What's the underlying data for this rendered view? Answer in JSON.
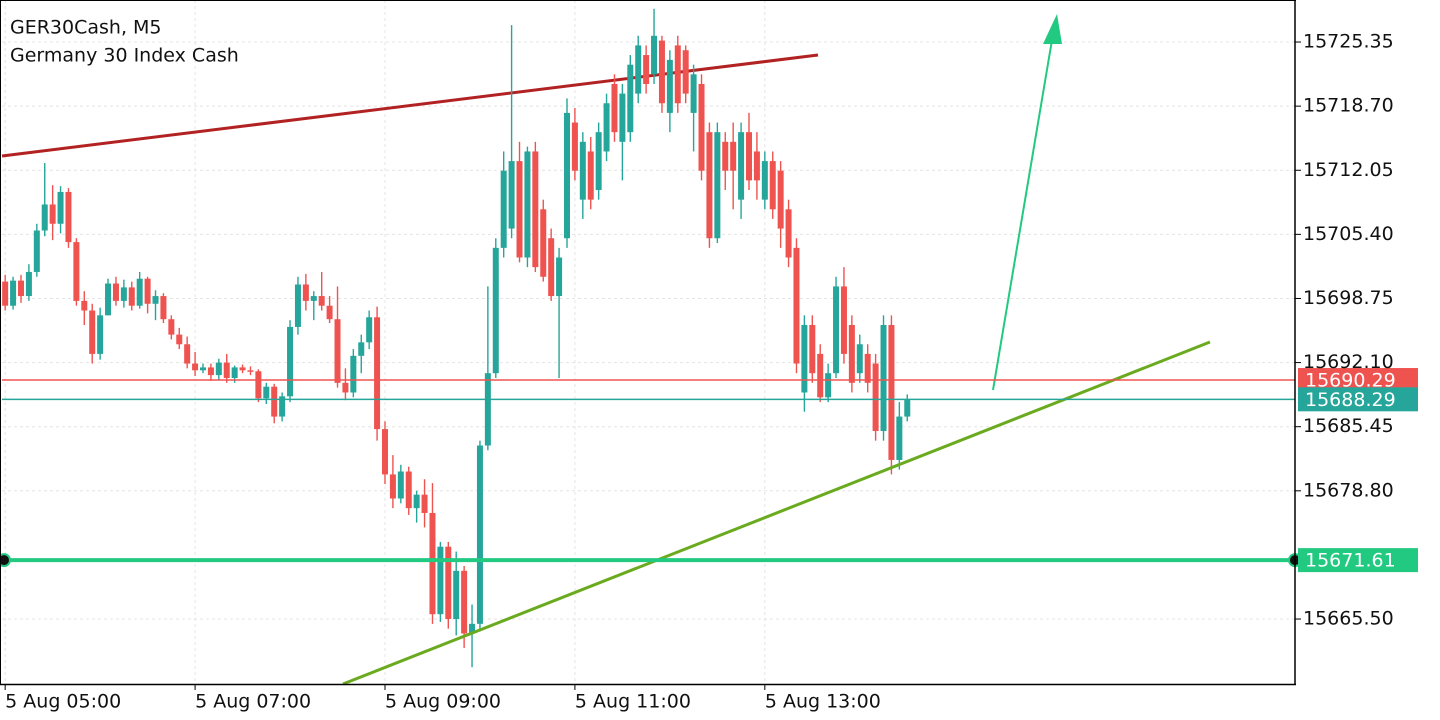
{
  "chart_data": {
    "type": "candlestick",
    "title": "GER30Cash, M5",
    "subtitle": "Germany 30 Index Cash",
    "up_color": "#26a69a",
    "down_color": "#ef5350",
    "grid": true,
    "ylim": [
      15658.76,
      15729.71
    ],
    "yticks": [
      15725.35,
      {
        "value": 15718.7,
        "label": "15718.70"
      },
      15712.05,
      {
        "value": 15705.4,
        "label": "15705.40"
      },
      15698.75,
      {
        "value": 15692.1,
        "label": "15692.10"
      },
      15685.45,
      {
        "value": 15678.8,
        "label": "15678.80"
      },
      {
        "value": 15665.5,
        "label": "15665.50"
      }
    ],
    "xlim": [
      -0.4,
      163
    ],
    "xticks": [
      {
        "value": 0,
        "label": "5 Aug 05:00"
      },
      {
        "value": 24,
        "label": "5 Aug 07:00"
      },
      {
        "value": 48,
        "label": "5 Aug 09:00"
      },
      {
        "value": 72,
        "label": "5 Aug 11:00"
      },
      {
        "value": 96,
        "label": "5 Aug 13:00"
      }
    ],
    "levels": [
      {
        "value": 15690.29,
        "color": "#ef5350"
      },
      {
        "value": 15688.29,
        "color": "#26a69a"
      },
      {
        "value": 15671.61,
        "color": "#22c980"
      }
    ],
    "candles": [
      [
        15700.5,
        15701.2,
        15697.5,
        15698.0
      ],
      [
        15698.0,
        15701.0,
        15697.6,
        15700.6
      ],
      [
        15700.6,
        15701.2,
        15698.3,
        15699.0
      ],
      [
        15699.0,
        15702.3,
        15698.5,
        15701.5
      ],
      [
        15701.5,
        15706.5,
        15701.0,
        15705.8
      ],
      [
        15705.8,
        15712.8,
        15705.2,
        15708.5
      ],
      [
        15708.5,
        15710.5,
        15704.8,
        15706.5
      ],
      [
        15706.5,
        15710.4,
        15705.5,
        15709.8
      ],
      [
        15709.8,
        15710.2,
        15704.0,
        15704.6
      ],
      [
        15704.6,
        15705.0,
        15698.0,
        15698.5
      ],
      [
        15698.5,
        15699.5,
        15696.0,
        15697.5
      ],
      [
        15697.5,
        15698.2,
        15692.0,
        15693.0
      ],
      [
        15693.0,
        15697.8,
        15692.4,
        15697.0
      ],
      [
        15697.0,
        15700.8,
        15697.0,
        15700.3
      ],
      [
        15700.3,
        15701.0,
        15698.0,
        15698.5
      ],
      [
        15698.5,
        15700.7,
        15697.8,
        15699.9
      ],
      [
        15699.9,
        15700.5,
        15697.5,
        15698.0
      ],
      [
        15698.0,
        15701.5,
        15697.7,
        15700.8
      ],
      [
        15700.8,
        15701.0,
        15697.2,
        15698.2
      ],
      [
        15698.2,
        15699.6,
        15696.5,
        15699.0
      ],
      [
        15699.0,
        15699.3,
        15696.2,
        15696.6
      ],
      [
        15696.6,
        15697.0,
        15694.5,
        15695.0
      ],
      [
        15695.0,
        15695.7,
        15693.5,
        15694.0
      ],
      [
        15694.0,
        15694.8,
        15691.5,
        15692.0
      ],
      [
        15692.0,
        15693.2,
        15690.7,
        15691.3
      ],
      [
        15691.3,
        15692.0,
        15691.0,
        15691.6
      ],
      [
        15691.6,
        15692.0,
        15690.2,
        15690.8
      ],
      [
        15690.8,
        15692.5,
        15690.3,
        15692.1
      ],
      [
        15692.1,
        15693.0,
        15690.0,
        15690.5
      ],
      [
        15690.5,
        15691.8,
        15690.0,
        15691.6
      ],
      [
        15691.6,
        15691.9,
        15691.0,
        15691.3
      ],
      [
        15691.3,
        15691.7,
        15690.8,
        15691.2
      ],
      [
        15691.2,
        15691.4,
        15688.0,
        15688.4
      ],
      [
        15688.4,
        15690.0,
        15687.8,
        15689.6
      ],
      [
        15689.6,
        15689.9,
        15685.8,
        15686.5
      ],
      [
        15686.5,
        15689.0,
        15686.0,
        15688.6
      ],
      [
        15688.6,
        15696.5,
        15688.0,
        15695.8
      ],
      [
        15695.8,
        15701.0,
        15695.0,
        15700.2
      ],
      [
        15700.2,
        15701.3,
        15697.5,
        15698.5
      ],
      [
        15698.5,
        15699.5,
        15696.5,
        15699.0
      ],
      [
        15699.0,
        15701.5,
        15697.5,
        15698.0
      ],
      [
        15698.0,
        15699.0,
        15696.2,
        15696.6
      ],
      [
        15696.6,
        15700.0,
        15689.5,
        15690.0
      ],
      [
        15690.0,
        15691.5,
        15688.2,
        15689.0
      ],
      [
        15689.0,
        15693.5,
        15688.5,
        15692.8
      ],
      [
        15692.8,
        15695.0,
        15691.0,
        15694.2
      ],
      [
        15694.2,
        15697.5,
        15693.5,
        15696.8
      ],
      [
        15696.8,
        15697.9,
        15684.0,
        15685.2
      ],
      [
        15685.2,
        15686.0,
        15679.5,
        15680.5
      ],
      [
        15680.5,
        15682.5,
        15677.0,
        15678.0
      ],
      [
        15678.0,
        15681.5,
        15677.5,
        15680.8
      ],
      [
        15680.8,
        15681.3,
        15676.3,
        15677.0
      ],
      [
        15677.0,
        15678.8,
        15675.5,
        15678.4
      ],
      [
        15678.4,
        15680.0,
        15675.0,
        15676.5
      ],
      [
        15676.5,
        15679.6,
        15665.0,
        15666.0
      ],
      [
        15666.0,
        15673.5,
        15665.2,
        15673.0
      ],
      [
        15673.0,
        15673.5,
        15664.5,
        15665.5
      ],
      [
        15665.5,
        15672.5,
        15663.8,
        15670.5
      ],
      [
        15670.5,
        15671.0,
        15662.5,
        15664.0
      ],
      [
        15664.0,
        15667.0,
        15660.5,
        15665.0
      ],
      [
        15665.0,
        15684.0,
        15664.2,
        15683.5
      ],
      [
        15683.5,
        15700.0,
        15683.0,
        15691.0
      ],
      [
        15691.0,
        15705.0,
        15690.5,
        15704.0
      ],
      [
        15704.0,
        15714.0,
        15703.0,
        15712.0
      ],
      [
        15706.0,
        15727.1,
        15705.0,
        15713.0
      ],
      [
        15713.0,
        15715.0,
        15702.5,
        15703.0
      ],
      [
        15703.0,
        15714.5,
        15702.0,
        15714.0
      ],
      [
        15714.0,
        15715.0,
        15701.5,
        15702.0
      ],
      [
        15708.0,
        15709.0,
        15700.5,
        15701.0
      ],
      [
        15705.0,
        15706.0,
        15698.5,
        15699.0
      ],
      [
        15699.0,
        15704.0,
        15690.5,
        15703.0
      ],
      [
        15705.0,
        15719.5,
        15704.0,
        15718.0
      ],
      [
        15717.0,
        15718.5,
        15711.0,
        15712.0
      ],
      [
        15709.0,
        15716.0,
        15707.0,
        15715.0
      ],
      [
        15714.0,
        15715.5,
        15708.0,
        15709.0
      ],
      [
        15710.0,
        15717.0,
        15709.0,
        15716.0
      ],
      [
        15714.0,
        15720.0,
        15713.0,
        15719.0
      ],
      [
        15721.0,
        15722.0,
        15715.0,
        15716.0
      ],
      [
        15715.0,
        15721.0,
        15711.0,
        15720.0
      ],
      [
        15716.0,
        15724.0,
        15715.0,
        15723.0
      ],
      [
        15720.0,
        15726.0,
        15719.0,
        15725.0
      ],
      [
        15724.0,
        15725.0,
        15720.0,
        15721.0
      ],
      [
        15722.0,
        15728.8,
        15721.0,
        15726.0
      ],
      [
        15725.5,
        15726.0,
        15718.0,
        15719.0
      ],
      [
        15718.0,
        15724.5,
        15716.0,
        15723.5
      ],
      [
        15725.0,
        15726.0,
        15718.0,
        15719.0
      ],
      [
        15724.5,
        15725.0,
        15719.0,
        15720.0
      ],
      [
        15718.0,
        15723.0,
        15714.0,
        15722.0
      ],
      [
        15721.0,
        15722.0,
        15711.0,
        15712.0
      ],
      [
        15716.0,
        15717.0,
        15704.0,
        15705.0
      ],
      [
        15705.0,
        15717.0,
        15704.5,
        15716.0
      ],
      [
        15715.0,
        15716.0,
        15710.0,
        15712.0
      ],
      [
        15715.0,
        15717.0,
        15708.0,
        15712.0
      ],
      [
        15709.0,
        15717.0,
        15707.0,
        15716.0
      ],
      [
        15716.0,
        15718.0,
        15710.0,
        15711.0
      ],
      [
        15714.0,
        15716.0,
        15709.0,
        15711.0
      ],
      [
        15709.0,
        15714.0,
        15708.0,
        15713.0
      ],
      [
        15713.0,
        15714.0,
        15707.0,
        15708.0
      ],
      [
        15712.0,
        15713.0,
        15704.0,
        15706.0
      ],
      [
        15708.0,
        15709.0,
        15702.0,
        15703.0
      ],
      [
        15704.0,
        15705.0,
        15691.0,
        15692.0
      ],
      [
        15689.0,
        15697.0,
        15687.0,
        15696.0
      ],
      [
        15696.0,
        15697.0,
        15690.0,
        15691.0
      ],
      [
        15693.0,
        15694.0,
        15688.0,
        15688.5
      ],
      [
        15688.5,
        15692.0,
        15688.0,
        15691.0
      ],
      [
        15691.0,
        15701.0,
        15690.5,
        15700.0
      ],
      [
        15700.0,
        15702.0,
        15692.0,
        15693.0
      ],
      [
        15696.0,
        15697.0,
        15689.0,
        15690.0
      ],
      [
        15691.0,
        15695.0,
        15690.0,
        15694.0
      ],
      [
        15693.0,
        15694.0,
        15689.0,
        15690.0
      ],
      [
        15692.0,
        15693.0,
        15684.0,
        15685.0
      ],
      [
        15685.0,
        15697.0,
        15684.0,
        15696.0
      ],
      [
        15696.0,
        15697.0,
        15680.5,
        15682.0
      ],
      [
        15682.0,
        15688.0,
        15681.0,
        15686.5
      ],
      [
        15686.5,
        15688.8,
        15686.0,
        15688.29
      ]
    ]
  }
}
